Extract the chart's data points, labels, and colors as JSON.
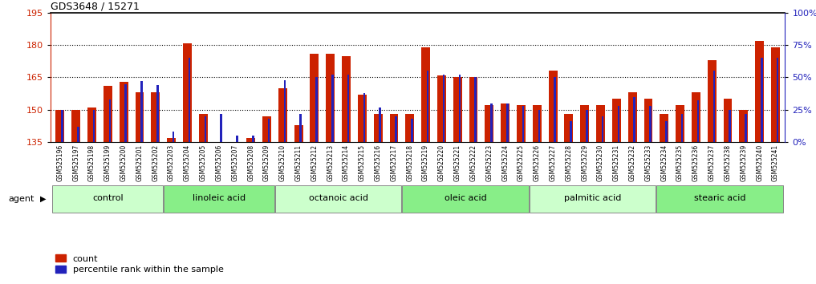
{
  "title": "GDS3648 / 15271",
  "samples": [
    "GSM525196",
    "GSM525197",
    "GSM525198",
    "GSM525199",
    "GSM525200",
    "GSM525201",
    "GSM525202",
    "GSM525203",
    "GSM525204",
    "GSM525205",
    "GSM525206",
    "GSM525207",
    "GSM525208",
    "GSM525209",
    "GSM525210",
    "GSM525211",
    "GSM525212",
    "GSM525213",
    "GSM525214",
    "GSM525215",
    "GSM525216",
    "GSM525217",
    "GSM525218",
    "GSM525219",
    "GSM525220",
    "GSM525221",
    "GSM525222",
    "GSM525223",
    "GSM525224",
    "GSM525225",
    "GSM525226",
    "GSM525227",
    "GSM525228",
    "GSM525229",
    "GSM525230",
    "GSM525231",
    "GSM525232",
    "GSM525233",
    "GSM525234",
    "GSM525235",
    "GSM525236",
    "GSM525237",
    "GSM525238",
    "GSM525239",
    "GSM525240",
    "GSM525241"
  ],
  "count_values": [
    150,
    150,
    151,
    161,
    163,
    158,
    158,
    137,
    181,
    148,
    135,
    133,
    137,
    147,
    160,
    143,
    176,
    176,
    175,
    157,
    148,
    148,
    148,
    179,
    166,
    165,
    165,
    152,
    153,
    152,
    152,
    168,
    148,
    152,
    152,
    155,
    158,
    155,
    148,
    152,
    158,
    173,
    155,
    150,
    182,
    179
  ],
  "percentile_values": [
    25,
    12,
    25,
    33,
    45,
    47,
    44,
    8,
    65,
    20,
    22,
    5,
    5,
    18,
    48,
    22,
    50,
    52,
    52,
    38,
    27,
    20,
    18,
    55,
    52,
    52,
    50,
    30,
    30,
    28,
    25,
    50,
    16,
    25,
    20,
    28,
    35,
    28,
    16,
    22,
    32,
    55,
    25,
    22,
    65,
    65
  ],
  "groups": [
    {
      "label": "control",
      "start": 0,
      "end": 7,
      "color": "#ccffcc"
    },
    {
      "label": "linoleic acid",
      "start": 7,
      "end": 14,
      "color": "#88ee88"
    },
    {
      "label": "octanoic acid",
      "start": 14,
      "end": 22,
      "color": "#ccffcc"
    },
    {
      "label": "oleic acid",
      "start": 22,
      "end": 30,
      "color": "#88ee88"
    },
    {
      "label": "palmitic acid",
      "start": 30,
      "end": 38,
      "color": "#ccffcc"
    },
    {
      "label": "stearic acid",
      "start": 38,
      "end": 46,
      "color": "#88ee88"
    }
  ],
  "ylim_left": [
    135,
    195
  ],
  "ylim_right": [
    0,
    100
  ],
  "yticks_left": [
    135,
    150,
    165,
    180,
    195
  ],
  "yticks_right": [
    0,
    25,
    50,
    75,
    100
  ],
  "ytick_labels_right": [
    "0%",
    "25%",
    "50%",
    "75%",
    "100%"
  ],
  "bar_color_red": "#cc2200",
  "bar_color_blue": "#2222bb",
  "bg_color": "#ffffff",
  "tick_bg_color": "#cccccc",
  "hline_values": [
    150,
    165,
    180
  ],
  "agent_label": "agent",
  "legend_count": "count",
  "legend_percentile": "percentile rank within the sample"
}
